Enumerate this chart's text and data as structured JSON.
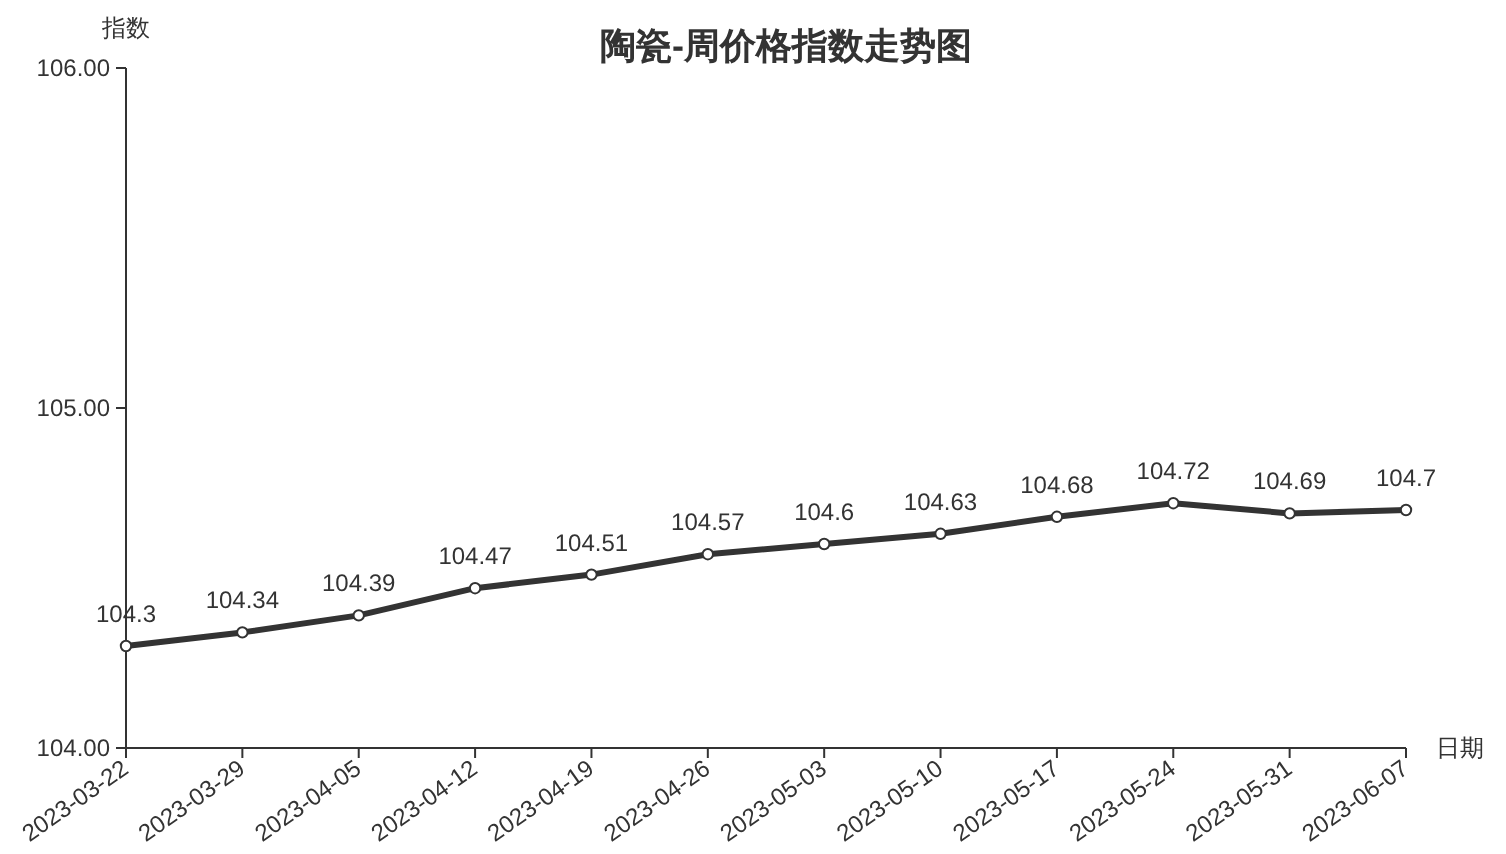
{
  "chart_data": {
    "type": "line",
    "title": "陶瓷-周价格指数走势图",
    "xlabel": "日期",
    "ylabel": "指数",
    "categories": [
      "2023-03-22",
      "2023-03-29",
      "2023-04-05",
      "2023-04-12",
      "2023-04-19",
      "2023-04-26",
      "2023-05-03",
      "2023-05-10",
      "2023-05-17",
      "2023-05-24",
      "2023-05-31",
      "2023-06-07"
    ],
    "series": [
      {
        "color": "#333333",
        "values": [
          104.3,
          104.34,
          104.39,
          104.47,
          104.51,
          104.57,
          104.6,
          104.63,
          104.68,
          104.72,
          104.69,
          104.7
        ]
      }
    ],
    "ylim": [
      104,
      106
    ],
    "yticks": [
      {
        "value": 104,
        "label": "104.00"
      },
      {
        "value": 105,
        "label": "105.00"
      },
      {
        "value": 106,
        "label": "106.00"
      }
    ],
    "data_labels": true,
    "marker": "circle",
    "line_style": "solid"
  }
}
